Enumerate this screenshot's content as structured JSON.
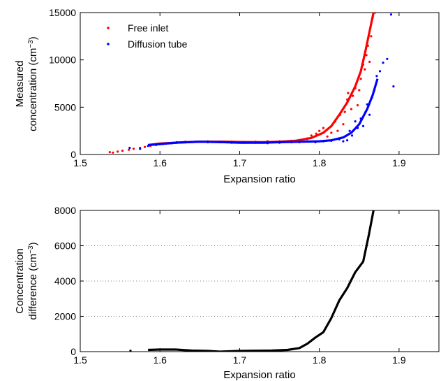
{
  "chart_data": [
    {
      "type": "scatter",
      "xlabel": "Expansion ratio",
      "ylabel_lines": [
        "Measured",
        "concentration (cm",
        "−3",
        ")"
      ],
      "xlim": [
        1.5,
        1.95
      ],
      "ylim": [
        0,
        15000
      ],
      "xticks": [
        "1.5",
        "1.6",
        "1.7",
        "1.8",
        "1.9"
      ],
      "yticks": [
        "0",
        "5000",
        "10000",
        "15000"
      ],
      "grid": false,
      "legend_position": "top-left",
      "series": [
        {
          "name": "Free inlet",
          "color": "#ff0000",
          "points": [
            [
              1.537,
              250
            ],
            [
              1.541,
              200
            ],
            [
              1.547,
              300
            ],
            [
              1.553,
              400
            ],
            [
              1.561,
              500
            ],
            [
              1.567,
              600
            ],
            [
              1.575,
              700
            ],
            [
              1.581,
              800
            ],
            [
              1.588,
              900
            ],
            [
              1.595,
              1000
            ],
            [
              1.603,
              1100
            ],
            [
              1.611,
              1200
            ],
            [
              1.621,
              1300
            ],
            [
              1.632,
              1350
            ],
            [
              1.645,
              1350
            ],
            [
              1.66,
              1400
            ],
            [
              1.675,
              1350
            ],
            [
              1.69,
              1350
            ],
            [
              1.705,
              1300
            ],
            [
              1.72,
              1350
            ],
            [
              1.735,
              1400
            ],
            [
              1.75,
              1400
            ],
            [
              1.765,
              1450
            ],
            [
              1.775,
              1500
            ],
            [
              1.785,
              1700
            ],
            [
              1.79,
              2000
            ],
            [
              1.796,
              2200
            ],
            [
              1.8,
              2500
            ],
            [
              1.805,
              2800
            ],
            [
              1.81,
              1900
            ],
            [
              1.815,
              2300
            ],
            [
              1.82,
              3500
            ],
            [
              1.823,
              2500
            ],
            [
              1.826,
              4200
            ],
            [
              1.83,
              3200
            ],
            [
              1.832,
              4500
            ],
            [
              1.835,
              5800
            ],
            [
              1.836,
              6500
            ],
            [
              1.84,
              4800
            ],
            [
              1.842,
              6200
            ],
            [
              1.845,
              7000
            ],
            [
              1.848,
              5200
            ],
            [
              1.85,
              6800
            ],
            [
              1.852,
              8000
            ],
            [
              1.855,
              9500
            ],
            [
              1.857,
              9000
            ],
            [
              1.859,
              10500
            ],
            [
              1.861,
              11500
            ],
            [
              1.863,
              9800
            ],
            [
              1.865,
              12500
            ],
            [
              1.867,
              14500
            ],
            [
              1.87,
              15000
            ]
          ],
          "fit": [
            [
              1.585,
              1000
            ],
            [
              1.6,
              1150
            ],
            [
              1.62,
              1250
            ],
            [
              1.65,
              1350
            ],
            [
              1.68,
              1350
            ],
            [
              1.7,
              1320
            ],
            [
              1.73,
              1300
            ],
            [
              1.75,
              1350
            ],
            [
              1.77,
              1450
            ],
            [
              1.79,
              1750
            ],
            [
              1.805,
              2300
            ],
            [
              1.815,
              3000
            ],
            [
              1.825,
              4200
            ],
            [
              1.835,
              5500
            ],
            [
              1.845,
              7200
            ],
            [
              1.852,
              8800
            ],
            [
              1.858,
              11000
            ],
            [
              1.863,
              13000
            ],
            [
              1.868,
              15000
            ]
          ]
        },
        {
          "name": "Diffusion tube",
          "color": "#0000ff",
          "points": [
            [
              1.562,
              700
            ],
            [
              1.575,
              600
            ],
            [
              1.585,
              900
            ],
            [
              1.6,
              1100
            ],
            [
              1.615,
              1200
            ],
            [
              1.63,
              1300
            ],
            [
              1.645,
              1350
            ],
            [
              1.66,
              1300
            ],
            [
              1.675,
              1300
            ],
            [
              1.69,
              1250
            ],
            [
              1.705,
              1250
            ],
            [
              1.72,
              1250
            ],
            [
              1.735,
              1200
            ],
            [
              1.75,
              1250
            ],
            [
              1.765,
              1300
            ],
            [
              1.775,
              1300
            ],
            [
              1.785,
              1400
            ],
            [
              1.795,
              1300
            ],
            [
              1.805,
              1400
            ],
            [
              1.815,
              1450
            ],
            [
              1.825,
              1600
            ],
            [
              1.83,
              1400
            ],
            [
              1.835,
              1500
            ],
            [
              1.838,
              2500
            ],
            [
              1.841,
              2000
            ],
            [
              1.845,
              3500
            ],
            [
              1.848,
              2800
            ],
            [
              1.852,
              3800
            ],
            [
              1.855,
              3000
            ],
            [
              1.858,
              4500
            ],
            [
              1.86,
              5300
            ],
            [
              1.863,
              4200
            ],
            [
              1.866,
              6000
            ],
            [
              1.869,
              6800
            ],
            [
              1.872,
              8300
            ],
            [
              1.876,
              8800
            ],
            [
              1.88,
              9700
            ],
            [
              1.885,
              10100
            ],
            [
              1.89,
              14800
            ],
            [
              1.893,
              7200
            ]
          ],
          "fit": [
            [
              1.585,
              1000
            ],
            [
              1.6,
              1100
            ],
            [
              1.62,
              1250
            ],
            [
              1.65,
              1350
            ],
            [
              1.68,
              1300
            ],
            [
              1.7,
              1250
            ],
            [
              1.73,
              1250
            ],
            [
              1.75,
              1300
            ],
            [
              1.78,
              1350
            ],
            [
              1.8,
              1400
            ],
            [
              1.815,
              1500
            ],
            [
              1.83,
              1800
            ],
            [
              1.84,
              2300
            ],
            [
              1.85,
              3200
            ],
            [
              1.86,
              4800
            ],
            [
              1.867,
              6300
            ],
            [
              1.873,
              8000
            ]
          ]
        }
      ]
    },
    {
      "type": "line",
      "xlabel": "Expansion ratio",
      "ylabel_lines": [
        "Concentration",
        "difference (cm",
        "−3",
        ")"
      ],
      "xlim": [
        1.5,
        1.95
      ],
      "ylim": [
        0,
        8000
      ],
      "xticks": [
        "1.5",
        "1.6",
        "1.7",
        "1.8",
        "1.9"
      ],
      "yticks": [
        "0",
        "2000",
        "4000",
        "6000",
        "8000"
      ],
      "grid": "y-dotted",
      "series": [
        {
          "color": "#000000",
          "points": [
            [
              1.585,
              100
            ],
            [
              1.6,
              120
            ],
            [
              1.62,
              120
            ],
            [
              1.64,
              60
            ],
            [
              1.66,
              40
            ],
            [
              1.675,
              0
            ],
            [
              1.7,
              40
            ],
            [
              1.72,
              50
            ],
            [
              1.74,
              60
            ],
            [
              1.76,
              100
            ],
            [
              1.775,
              200
            ],
            [
              1.785,
              450
            ],
            [
              1.795,
              800
            ],
            [
              1.805,
              1100
            ],
            [
              1.815,
              1900
            ],
            [
              1.825,
              2900
            ],
            [
              1.835,
              3600
            ],
            [
              1.845,
              4500
            ],
            [
              1.855,
              5100
            ],
            [
              1.862,
              6600
            ],
            [
              1.868,
              8000
            ]
          ]
        }
      ],
      "extra_points": [
        [
          1.563,
          50
        ]
      ]
    }
  ]
}
